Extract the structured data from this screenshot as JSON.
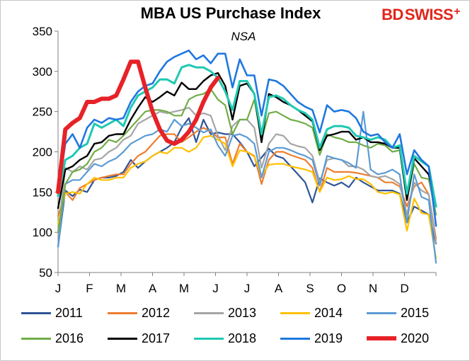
{
  "chart_data": {
    "type": "line",
    "title": "MBA US Purchase Index",
    "subtitle": "NSA",
    "x_ticks": [
      "J",
      "F",
      "M",
      "A",
      "M",
      "J",
      "J",
      "A",
      "S",
      "O",
      "N",
      "D"
    ],
    "y_ticks": [
      "50",
      "100",
      "150",
      "200",
      "250",
      "300",
      "350"
    ],
    "ylim": [
      50,
      350
    ],
    "xlim": [
      0,
      52
    ],
    "grid": false,
    "legend_position": "bottom",
    "series": [
      {
        "name": "2011",
        "color": "#2f5597",
        "width": 2.2,
        "values": [
          82,
          152,
          145,
          153,
          150,
          165,
          168,
          168,
          170,
          175,
          190,
          180,
          188,
          195,
          200,
          205,
          212,
          230,
          242,
          212,
          240,
          222,
          224,
          222,
          222,
          212,
          200,
          182,
          193,
          204,
          195,
          192,
          182,
          172,
          162,
          137,
          167,
          162,
          158,
          162,
          156,
          168,
          162,
          157,
          152,
          152,
          152,
          148,
          112,
          132,
          127,
          122,
          86
        ]
      },
      {
        "name": "2012",
        "color": "#ed7d31",
        "width": 2.2,
        "values": [
          120,
          150,
          140,
          155,
          160,
          165,
          168,
          170,
          172,
          172,
          185,
          195,
          200,
          210,
          220,
          222,
          222,
          212,
          218,
          225,
          230,
          225,
          218,
          218,
          185,
          210,
          200,
          195,
          160,
          190,
          200,
          200,
          196,
          193,
          190,
          180,
          150,
          180,
          175,
          175,
          175,
          174,
          172,
          170,
          168,
          162,
          162,
          157,
          132,
          157,
          162,
          147,
          92
        ]
      },
      {
        "name": "2013",
        "color": "#a5a5a5",
        "width": 2.2,
        "values": [
          98,
          180,
          175,
          182,
          178,
          190,
          192,
          200,
          205,
          215,
          220,
          235,
          240,
          245,
          250,
          248,
          250,
          252,
          255,
          245,
          248,
          245,
          220,
          202,
          232,
          240,
          240,
          230,
          180,
          210,
          222,
          220,
          210,
          207,
          205,
          195,
          162,
          190,
          192,
          190,
          182,
          182,
          178,
          170,
          168,
          170,
          166,
          160,
          122,
          162,
          152,
          147,
          87
        ]
      },
      {
        "name": "2014",
        "color": "#ffc000",
        "width": 2.2,
        "values": [
          110,
          148,
          150,
          148,
          160,
          168,
          165,
          165,
          168,
          168,
          180,
          185,
          188,
          195,
          200,
          198,
          205,
          205,
          200,
          205,
          218,
          220,
          215,
          210,
          182,
          202,
          200,
          194,
          170,
          184,
          185,
          185,
          182,
          180,
          178,
          175,
          150,
          168,
          165,
          166,
          170,
          166,
          166,
          160,
          150,
          148,
          150,
          147,
          102,
          142,
          124,
          122,
          68
        ]
      },
      {
        "name": "2015",
        "color": "#5b9bd5",
        "width": 2.2,
        "values": [
          82,
          160,
          165,
          165,
          175,
          185,
          182,
          188,
          192,
          200,
          210,
          215,
          220,
          222,
          228,
          225,
          240,
          232,
          235,
          230,
          224,
          228,
          208,
          195,
          220,
          222,
          218,
          210,
          168,
          200,
          205,
          205,
          202,
          198,
          195,
          190,
          158,
          195,
          192,
          190,
          186,
          180,
          250,
          178,
          172,
          174,
          178,
          172,
          112,
          172,
          144,
          140,
          62
        ]
      },
      {
        "name": "2016",
        "color": "#70ad47",
        "width": 2.2,
        "values": [
          100,
          160,
          175,
          178,
          185,
          200,
          205,
          215,
          212,
          220,
          230,
          240,
          250,
          252,
          252,
          250,
          245,
          245,
          265,
          270,
          272,
          278,
          265,
          258,
          222,
          240,
          240,
          265,
          215,
          248,
          250,
          245,
          240,
          238,
          235,
          230,
          196,
          222,
          218,
          216,
          212,
          212,
          208,
          205,
          210,
          208,
          200,
          202,
          140,
          185,
          168,
          166,
          122
        ]
      },
      {
        "name": "2017",
        "color": "#000000",
        "width": 2.4,
        "values": [
          130,
          178,
          182,
          190,
          195,
          210,
          212,
          220,
          222,
          222,
          240,
          255,
          268,
          262,
          268,
          275,
          270,
          286,
          278,
          278,
          288,
          295,
          298,
          282,
          240,
          282,
          285,
          272,
          212,
          272,
          268,
          262,
          258,
          252,
          245,
          238,
          202,
          220,
          222,
          225,
          225,
          215,
          218,
          212,
          212,
          210,
          205,
          205,
          140,
          192,
          182,
          172,
          132
        ]
      },
      {
        "name": "2018",
        "color": "#1fc9b2",
        "width": 3.0,
        "values": [
          145,
          190,
          195,
          205,
          210,
          235,
          230,
          235,
          240,
          232,
          255,
          270,
          275,
          280,
          290,
          290,
          285,
          305,
          308,
          305,
          305,
          300,
          292,
          275,
          252,
          288,
          288,
          272,
          222,
          268,
          270,
          266,
          258,
          252,
          248,
          240,
          205,
          228,
          232,
          232,
          230,
          220,
          218,
          215,
          218,
          215,
          205,
          208,
          148,
          195,
          188,
          182,
          132
        ]
      },
      {
        "name": "2019",
        "color": "#1f77e0",
        "width": 2.6,
        "values": [
          150,
          210,
          222,
          205,
          230,
          240,
          236,
          242,
          240,
          242,
          262,
          275,
          282,
          285,
          300,
          312,
          318,
          322,
          326,
          315,
          320,
          310,
          322,
          322,
          280,
          315,
          295,
          295,
          245,
          290,
          288,
          282,
          272,
          262,
          256,
          252,
          224,
          258,
          250,
          252,
          250,
          242,
          225,
          220,
          222,
          212,
          205,
          222,
          172,
          202,
          190,
          182,
          108
        ]
      },
      {
        "name": "2020",
        "color": "#e62228",
        "width": 6.0,
        "values": [
          150,
          228,
          236,
          242,
          262,
          262,
          266,
          266,
          270,
          290,
          312,
          312,
          280,
          250,
          228,
          214,
          210,
          215,
          225,
          240,
          262,
          280,
          292
        ]
      }
    ]
  },
  "logo": {
    "part1": "BD",
    "part2": "SWISS",
    "mark": "+"
  }
}
